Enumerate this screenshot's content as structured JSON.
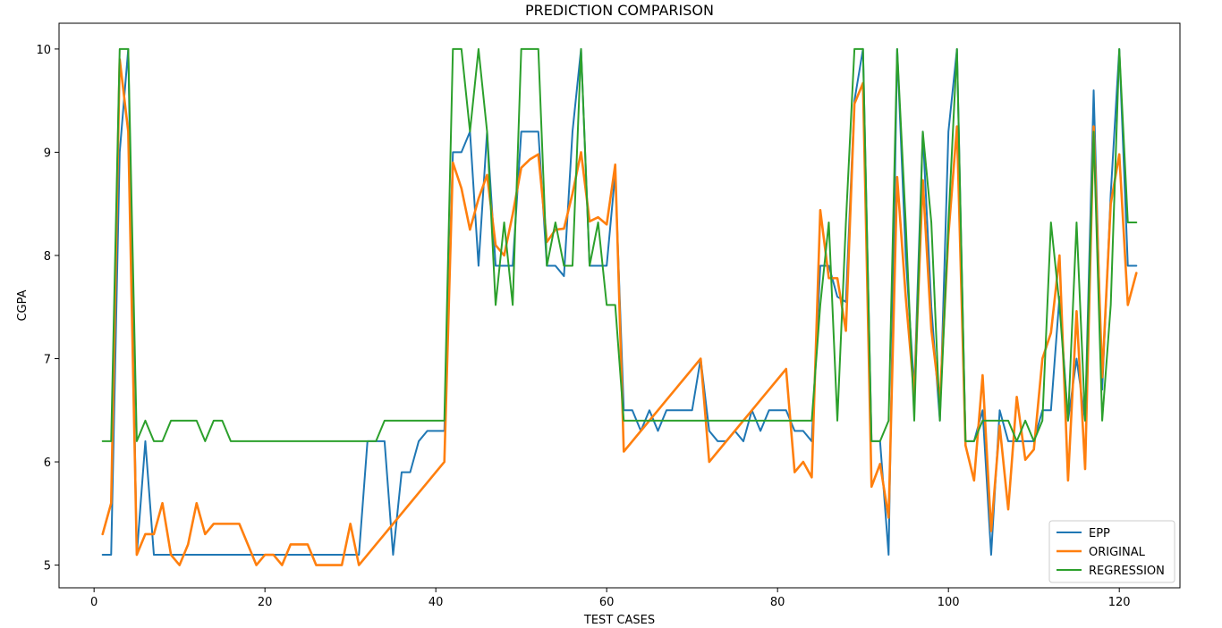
{
  "chart_data": {
    "type": "line",
    "title": "PREDICTION COMPARISON",
    "xlabel": "TEST CASES",
    "ylabel": "CGPA",
    "xlim": [
      -4.1,
      127.1
    ],
    "ylim": [
      4.78,
      10.25
    ],
    "xticks": [
      0,
      20,
      40,
      60,
      80,
      100,
      120
    ],
    "yticks": [
      5,
      6,
      7,
      8,
      9,
      10
    ],
    "grid": false,
    "legend_position": "lower-right",
    "x": [
      1,
      2,
      3,
      4,
      5,
      6,
      7,
      8,
      9,
      10,
      11,
      12,
      13,
      14,
      15,
      16,
      17,
      18,
      19,
      20,
      21,
      22,
      23,
      24,
      25,
      26,
      27,
      28,
      29,
      30,
      31,
      32,
      33,
      34,
      35,
      36,
      37,
      38,
      39,
      40,
      41,
      42,
      43,
      44,
      45,
      46,
      47,
      48,
      49,
      50,
      51,
      52,
      53,
      54,
      55,
      56,
      57,
      58,
      59,
      60,
      61,
      62,
      63,
      64,
      65,
      66,
      67,
      68,
      69,
      70,
      71,
      72,
      73,
      74,
      75,
      76,
      77,
      78,
      79,
      80,
      81,
      82,
      83,
      84,
      85,
      86,
      87,
      88,
      89,
      90,
      91,
      92,
      93,
      94,
      95,
      96,
      97,
      98,
      99,
      100,
      101,
      102,
      103,
      104,
      105,
      106,
      107,
      108,
      109,
      110,
      111,
      112,
      113,
      114,
      115,
      116,
      117,
      118,
      119,
      120,
      121,
      122
    ],
    "series": [
      {
        "name": "EPP",
        "color": "#1f77b4",
        "width": 2,
        "values": [
          5.1,
          5.1,
          9.0,
          10.0,
          5.1,
          6.2,
          5.1,
          5.1,
          5.1,
          5.1,
          5.1,
          5.1,
          5.1,
          5.1,
          5.1,
          5.1,
          5.1,
          5.1,
          5.1,
          5.1,
          5.1,
          5.1,
          5.1,
          5.1,
          5.1,
          5.1,
          5.1,
          5.1,
          5.1,
          5.1,
          5.1,
          6.2,
          6.2,
          6.2,
          5.1,
          5.9,
          5.9,
          6.2,
          6.3,
          6.3,
          6.3,
          9.0,
          9.0,
          9.2,
          7.9,
          9.2,
          7.9,
          7.9,
          7.9,
          9.2,
          9.2,
          9.2,
          7.9,
          7.9,
          7.8,
          9.2,
          10.0,
          7.9,
          7.9,
          7.9,
          8.8,
          6.5,
          6.5,
          6.3,
          6.5,
          6.3,
          6.5,
          6.5,
          6.5,
          6.5,
          7.0,
          6.3,
          6.2,
          6.2,
          6.3,
          6.2,
          6.5,
          6.3,
          6.5,
          6.5,
          6.5,
          6.3,
          6.3,
          6.2,
          7.9,
          7.9,
          7.6,
          7.55,
          9.5,
          10.0,
          6.2,
          6.2,
          5.1,
          10.0,
          8.0,
          6.7,
          9.2,
          7.5,
          6.4,
          9.2,
          10.0,
          6.2,
          6.2,
          6.5,
          5.1,
          6.5,
          6.2,
          6.2,
          6.2,
          6.2,
          6.5,
          6.5,
          7.6,
          6.4,
          7.0,
          6.4,
          9.6,
          6.7,
          8.6,
          10.0,
          7.9,
          7.9
        ]
      },
      {
        "name": "ORIGINAL",
        "color": "#ff7f0e",
        "width": 2.6,
        "values": [
          5.3,
          5.6,
          9.9,
          9.2,
          5.1,
          5.3,
          5.3,
          5.6,
          5.1,
          5.0,
          5.2,
          5.6,
          5.3,
          5.4,
          5.4,
          5.4,
          5.4,
          5.2,
          5.0,
          5.1,
          5.1,
          5.0,
          5.2,
          5.2,
          5.2,
          5.0,
          5.0,
          5.0,
          5.0,
          5.4,
          5.0,
          5.1,
          5.2,
          5.3,
          5.4,
          5.5,
          5.6,
          5.7,
          5.8,
          5.9,
          6.0,
          8.9,
          8.65,
          8.25,
          8.55,
          8.78,
          8.1,
          8.0,
          8.4,
          8.85,
          8.93,
          8.98,
          8.13,
          8.25,
          8.26,
          8.6,
          9.0,
          8.33,
          8.37,
          8.3,
          8.88,
          6.1,
          6.2,
          6.3,
          6.4,
          6.5,
          6.6,
          6.7,
          6.8,
          6.9,
          7.0,
          6.0,
          6.1,
          6.2,
          6.3,
          6.4,
          6.5,
          6.6,
          6.7,
          6.8,
          6.9,
          5.9,
          6.0,
          5.85,
          8.44,
          7.78,
          7.78,
          7.27,
          9.47,
          9.67,
          5.76,
          5.98,
          5.46,
          8.76,
          7.6,
          6.64,
          8.73,
          7.28,
          6.59,
          8.2,
          9.25,
          6.16,
          5.82,
          6.84,
          5.33,
          6.35,
          5.54,
          6.63,
          6.02,
          6.12,
          7.0,
          7.25,
          8.0,
          5.82,
          7.46,
          5.93,
          9.25,
          6.82,
          8.5,
          8.98,
          7.52,
          7.83
        ]
      },
      {
        "name": "REGRESSION",
        "color": "#2ca02c",
        "width": 2,
        "values": [
          6.2,
          6.2,
          10.0,
          10.0,
          6.2,
          6.4,
          6.2,
          6.2,
          6.4,
          6.4,
          6.4,
          6.4,
          6.2,
          6.4,
          6.4,
          6.2,
          6.2,
          6.2,
          6.2,
          6.2,
          6.2,
          6.2,
          6.2,
          6.2,
          6.2,
          6.2,
          6.2,
          6.2,
          6.2,
          6.2,
          6.2,
          6.2,
          6.2,
          6.4,
          6.4,
          6.4,
          6.4,
          6.4,
          6.4,
          6.4,
          6.4,
          10.0,
          10.0,
          9.2,
          10.0,
          9.2,
          7.52,
          8.32,
          7.52,
          10.0,
          10.0,
          10.0,
          7.9,
          8.32,
          7.9,
          7.9,
          10.0,
          7.9,
          8.32,
          7.52,
          7.52,
          6.4,
          6.4,
          6.4,
          6.4,
          6.4,
          6.4,
          6.4,
          6.4,
          6.4,
          6.4,
          6.4,
          6.4,
          6.4,
          6.4,
          6.4,
          6.4,
          6.4,
          6.4,
          6.4,
          6.4,
          6.4,
          6.4,
          6.4,
          7.52,
          8.32,
          6.4,
          8.32,
          10.0,
          10.0,
          6.2,
          6.2,
          6.4,
          10.0,
          8.32,
          6.4,
          9.2,
          8.32,
          6.4,
          8.32,
          10.0,
          6.2,
          6.2,
          6.4,
          6.4,
          6.4,
          6.4,
          6.2,
          6.4,
          6.2,
          6.4,
          8.32,
          7.52,
          6.4,
          8.32,
          6.4,
          9.2,
          6.4,
          7.52,
          10.0,
          8.32,
          8.32
        ]
      }
    ]
  }
}
